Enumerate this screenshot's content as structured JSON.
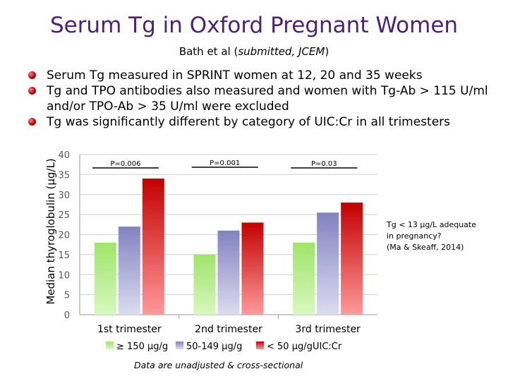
{
  "slide": {
    "title": "Serum Tg in Oxford Pregnant Women",
    "subtitle_pre": "Bath et al (",
    "subtitle_italic": "submitted, JCEM",
    "subtitle_post": ")",
    "bullets": [
      "Serum Tg measured in SPRINT women at 12, 20 and 35 weeks",
      "Tg and TPO antibodies also measured and women with Tg-Ab > 115 U/ml and/or TPO-Ab > 35 U/ml were excluded",
      "Tg was significantly different by category of UIC:Cr in all trimesters"
    ],
    "side_note_lines": [
      "Tg < 13 μg/L adequate",
      "in pregnancy?",
      "(Ma & Skeaff, 2014)"
    ],
    "footer": "Data are unadjusted & cross-sectional"
  },
  "colors": {
    "title": "#4b2276",
    "green": "#b2ee82",
    "purple": "#9b9bd1",
    "red": "#d81818"
  },
  "chart_data": {
    "type": "bar",
    "categories": [
      "1st trimester",
      "2nd trimester",
      "3rd trimester"
    ],
    "series": [
      {
        "name": "≥ 150 μg/g",
        "values": [
          18,
          15,
          18
        ],
        "color": "#b2ee82"
      },
      {
        "name": "50-149 μg/g",
        "values": [
          22,
          21,
          25.5
        ],
        "color": "#9b9bd1"
      },
      {
        "name": "< 50 μg/g",
        "values": [
          34,
          23,
          28
        ],
        "color": "#d81818"
      }
    ],
    "ylabel": "Median thyroglobulin (μg/L)",
    "ylim": [
      0,
      40
    ],
    "yticks": [
      0,
      5,
      10,
      15,
      20,
      25,
      30,
      35,
      40
    ],
    "grid": true,
    "legend_position": "bottom",
    "legend_suffix": "UIC:Cr",
    "annotations": [
      "P=0.006",
      "P=0.001",
      "P=0.03"
    ]
  }
}
